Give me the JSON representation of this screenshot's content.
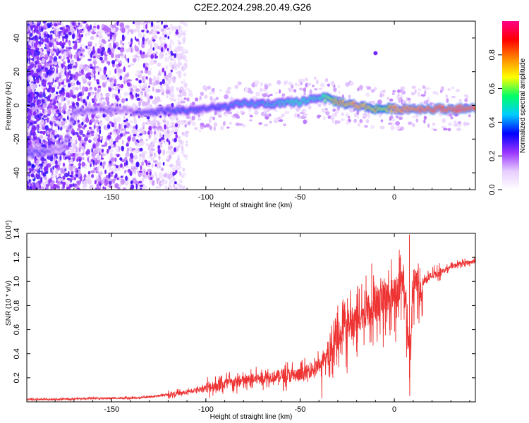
{
  "title": "C2E2.2024.298.20.49.G26",
  "chart_data": [
    {
      "type": "heatmap",
      "xlabel": "Height of straight line (km)",
      "ylabel": "Frequency (Hz)",
      "xlim": [
        -195,
        43
      ],
      "ylim": [
        -50,
        50
      ],
      "xticks": [
        "-150",
        "-100",
        "-50",
        "0"
      ],
      "yticks": [
        "-40",
        "-20",
        "0",
        "20",
        "40"
      ],
      "colorbar": {
        "label": "Normalized spectral amplitude",
        "range": [
          0,
          1
        ],
        "ticks": [
          "0.0",
          "0.2",
          "0.4",
          "0.6",
          "0.8"
        ],
        "colors": [
          "#ffffff",
          "#e6ccff",
          "#9933ff",
          "#0000ff",
          "#00ccff",
          "#00ff66",
          "#ffff00",
          "#ff8800",
          "#ff0000",
          "#ff0088"
        ]
      },
      "ridge": {
        "x": [
          -195,
          -185,
          -180,
          -175,
          -170,
          -165,
          -160,
          -155,
          -150,
          -145,
          -140,
          -135,
          -130,
          -120,
          -110,
          -100,
          -90,
          -80,
          -70,
          -60,
          -50,
          -40,
          -35,
          -30,
          -25,
          -20,
          -15,
          -10,
          -5,
          0,
          10,
          20,
          30,
          43
        ],
        "frequency": [
          -28,
          -28,
          -26,
          -25,
          -4,
          -3,
          -3,
          -3,
          -3,
          -3,
          -3,
          -5,
          -4,
          -3,
          -3,
          -2,
          -1,
          1,
          1,
          1,
          2,
          5,
          4,
          2,
          1,
          0,
          -1,
          -2,
          -2,
          -2,
          -2,
          -2,
          -2,
          -2
        ],
        "amplitude": [
          0.35,
          0.35,
          0.25,
          0.25,
          0.3,
          0.3,
          0.3,
          0.3,
          0.3,
          0.25,
          0.25,
          0.35,
          0.35,
          0.4,
          0.45,
          0.4,
          0.45,
          0.5,
          0.5,
          0.55,
          0.6,
          0.55,
          0.7,
          0.85,
          0.85,
          0.9,
          0.85,
          0.8,
          0.75,
          0.9,
          0.95,
          1.0,
          1.0,
          1.0
        ]
      },
      "outlier": {
        "x": -10,
        "frequency": 31,
        "amplitude": 0.25
      }
    },
    {
      "type": "line",
      "xlabel": "Height of straight line (km)",
      "ylabel": "SNR (10 * v/v)",
      "scale_label": "(x10⁴)",
      "xlim": [
        -195,
        43
      ],
      "ylim": [
        0,
        1.4
      ],
      "xticks": [
        "-150",
        "-100",
        "-50",
        "0"
      ],
      "yticks": [
        "0.2",
        "0.4",
        "0.6",
        "0.8",
        "1.0",
        "1.2",
        "1.4"
      ],
      "color": "#ee3333",
      "x": [
        -195,
        -180,
        -160,
        -140,
        -130,
        -120,
        -110,
        -100,
        -90,
        -80,
        -70,
        -60,
        -50,
        -45,
        -40,
        -35,
        -30,
        -25,
        -20,
        -15,
        -10,
        -5,
        0,
        5,
        8,
        10,
        15,
        20,
        30,
        35,
        40,
        43
      ],
      "y": [
        0.02,
        0.02,
        0.03,
        0.03,
        0.04,
        0.06,
        0.08,
        0.12,
        0.15,
        0.17,
        0.2,
        0.22,
        0.22,
        0.26,
        0.3,
        0.4,
        0.55,
        0.65,
        0.7,
        0.75,
        0.8,
        0.85,
        0.9,
        1.0,
        0.3,
        0.95,
        1.0,
        1.05,
        1.12,
        1.15,
        1.16,
        1.17
      ],
      "spikes": [
        {
          "x": -30,
          "y": 0.8
        },
        {
          "x": -15,
          "y": 1.05
        },
        {
          "x": -12,
          "y": 1.15
        },
        {
          "x": 3,
          "y": 1.2
        },
        {
          "x": 8,
          "y": 1.39
        },
        {
          "x": 8,
          "y": 0.2
        }
      ]
    }
  ]
}
